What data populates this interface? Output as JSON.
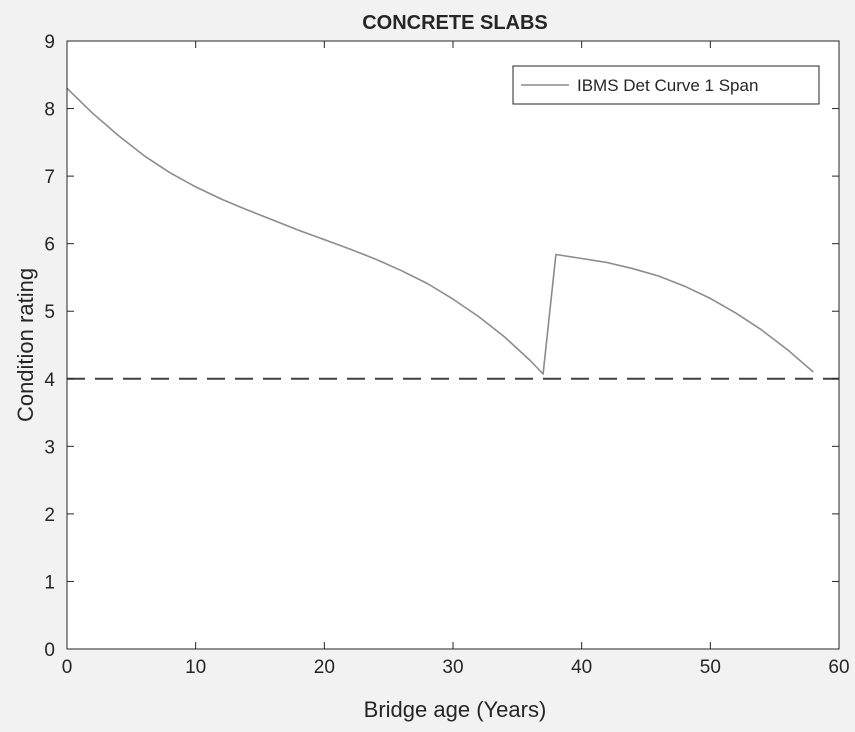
{
  "chart_data": {
    "type": "line",
    "title": "CONCRETE SLABS",
    "xlabel": "Bridge age (Years)",
    "ylabel": "Condition rating",
    "xlim": [
      0,
      60
    ],
    "ylim": [
      0,
      9
    ],
    "x_ticks": [
      "0",
      "10",
      "20",
      "30",
      "40",
      "50",
      "60"
    ],
    "y_ticks": [
      "0",
      "1",
      "2",
      "3",
      "4",
      "5",
      "6",
      "7",
      "8",
      "9"
    ],
    "grid": false,
    "legend_position": "top-right",
    "series": [
      {
        "name": "IBMS Det Curve 1 Span",
        "color": "#8c8c8c",
        "x": [
          0,
          2,
          4,
          6,
          8,
          10,
          12,
          14,
          16,
          18,
          20,
          22,
          24,
          26,
          28,
          30,
          32,
          34,
          36,
          37,
          38,
          40,
          42,
          44,
          46,
          48,
          50,
          52,
          54,
          56,
          58
        ],
        "y": [
          8.3,
          7.93,
          7.6,
          7.3,
          7.05,
          6.84,
          6.66,
          6.5,
          6.35,
          6.2,
          6.06,
          5.92,
          5.77,
          5.6,
          5.41,
          5.18,
          4.92,
          4.62,
          4.27,
          4.07,
          5.84,
          5.78,
          5.72,
          5.63,
          5.52,
          5.37,
          5.19,
          4.97,
          4.72,
          4.43,
          4.1
        ]
      }
    ],
    "reference_lines": [
      {
        "axis": "y",
        "value": 4,
        "style": "dashed",
        "color": "#404040"
      }
    ]
  }
}
